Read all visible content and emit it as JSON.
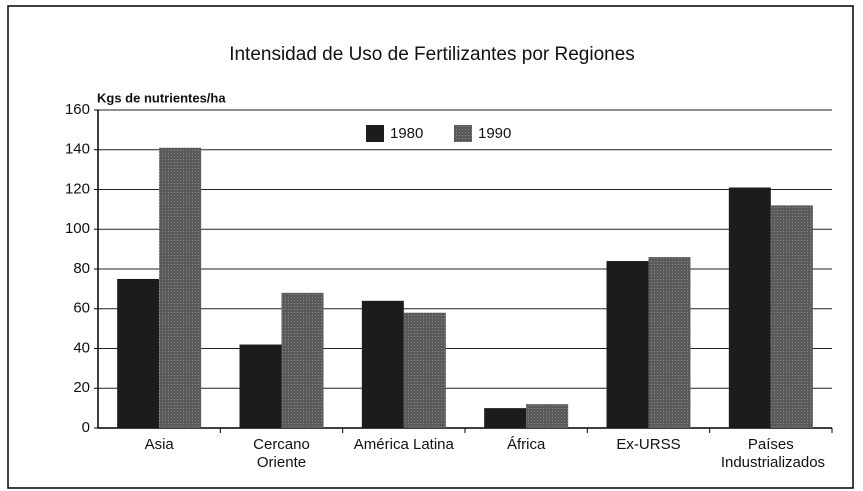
{
  "chart_data": {
    "type": "bar",
    "title": "Intensidad de Uso de Fertilizantes por Regiones",
    "y_label": "Kgs de nutrientes/ha",
    "categories": [
      "Asia",
      "Cercano Oriente",
      "América Latina",
      "África",
      "Ex-URSS",
      "Países Industrializados"
    ],
    "series": [
      {
        "name": "1980",
        "color": "#1c1c1c",
        "values": [
          75,
          42,
          64,
          10,
          84,
          121
        ]
      },
      {
        "name": "1990",
        "color": "#5a5a5a",
        "values": [
          141,
          68,
          58,
          12,
          86,
          112
        ]
      }
    ],
    "ylim": [
      0,
      160
    ],
    "yticks": [
      0,
      20,
      40,
      60,
      80,
      100,
      120,
      140,
      160
    ],
    "grid": true
  }
}
